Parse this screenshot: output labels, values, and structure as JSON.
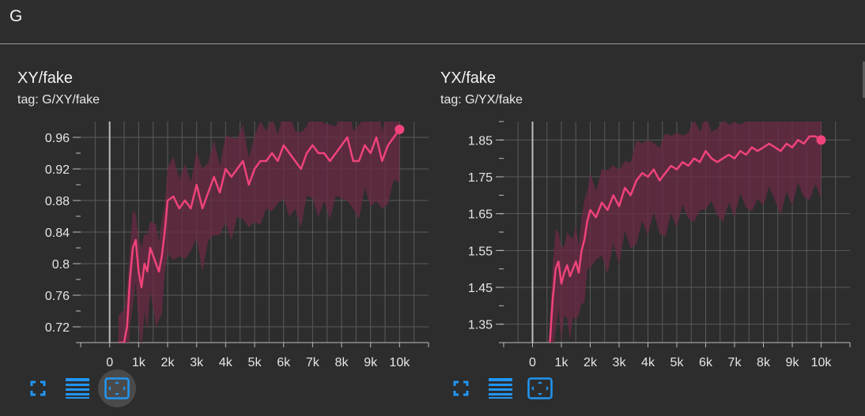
{
  "group": {
    "title": "G"
  },
  "colors": {
    "line": "#f0437a",
    "band": "#6b2a45",
    "grid": "#5a5a5a",
    "zero_axis": "#bdbdbd"
  },
  "toolbar_icons": [
    "fullscreen-icon",
    "data-table-icon",
    "fit-domain-icon"
  ],
  "chart_data": [
    {
      "type": "line",
      "title": "XY/fake",
      "tag": "tag: G/XY/fake",
      "xlim": [
        -1000,
        11000
      ],
      "ylim": [
        0.7,
        0.98
      ],
      "xticks": [
        0,
        1000,
        2000,
        3000,
        4000,
        5000,
        6000,
        7000,
        8000,
        9000,
        10000
      ],
      "xtick_labels": [
        "0",
        "1k",
        "2k",
        "3k",
        "4k",
        "5k",
        "6k",
        "7k",
        "8k",
        "9k",
        "10k"
      ],
      "yticks": [
        0.72,
        0.76,
        0.8,
        0.84,
        0.88,
        0.92,
        0.96
      ],
      "ytick_labels": [
        "0.72",
        "0.76",
        "0.8",
        "0.84",
        "0.88",
        "0.92",
        "0.96"
      ],
      "grid": true,
      "series": [
        {
          "x": [
            300,
            500,
            600,
            700,
            800,
            900,
            1000,
            1100,
            1200,
            1300,
            1400,
            1500,
            1600,
            1700,
            1800,
            1900,
            2000,
            2200,
            2400,
            2600,
            2800,
            3000,
            3200,
            3400,
            3600,
            3800,
            4000,
            4200,
            4400,
            4600,
            4800,
            5000,
            5200,
            5400,
            5600,
            5800,
            6000,
            6200,
            6400,
            6600,
            6800,
            7000,
            7200,
            7400,
            7600,
            7800,
            8000,
            8200,
            8400,
            8600,
            8800,
            9000,
            9200,
            9400,
            9600,
            9800,
            10000
          ],
          "values": [
            0.7,
            0.7,
            0.72,
            0.78,
            0.82,
            0.83,
            0.79,
            0.77,
            0.8,
            0.79,
            0.82,
            0.81,
            0.8,
            0.79,
            0.81,
            0.84,
            0.88,
            0.885,
            0.87,
            0.88,
            0.87,
            0.9,
            0.87,
            0.89,
            0.91,
            0.89,
            0.92,
            0.91,
            0.92,
            0.93,
            0.9,
            0.92,
            0.93,
            0.93,
            0.94,
            0.93,
            0.95,
            0.94,
            0.93,
            0.92,
            0.94,
            0.95,
            0.94,
            0.94,
            0.93,
            0.94,
            0.95,
            0.96,
            0.93,
            0.93,
            0.95,
            0.94,
            0.96,
            0.93,
            0.95,
            0.96,
            0.97
          ]
        }
      ]
    },
    {
      "type": "line",
      "title": "YX/fake",
      "tag": "tag: G/YX/fake",
      "xlim": [
        -1000,
        11000
      ],
      "ylim": [
        1.3,
        1.9
      ],
      "xticks": [
        0,
        1000,
        2000,
        3000,
        4000,
        5000,
        6000,
        7000,
        8000,
        9000,
        10000
      ],
      "xtick_labels": [
        "0",
        "1k",
        "2k",
        "3k",
        "4k",
        "5k",
        "6k",
        "7k",
        "8k",
        "9k",
        "10k"
      ],
      "yticks": [
        1.35,
        1.45,
        1.55,
        1.65,
        1.75,
        1.85
      ],
      "ytick_labels": [
        "1.35",
        "1.45",
        "1.55",
        "1.65",
        "1.75",
        "1.85"
      ],
      "grid": true,
      "series": [
        {
          "x": [
            600,
            700,
            800,
            900,
            1000,
            1100,
            1200,
            1300,
            1400,
            1500,
            1600,
            1700,
            1800,
            1900,
            2000,
            2200,
            2400,
            2600,
            2800,
            3000,
            3200,
            3400,
            3600,
            3800,
            4000,
            4200,
            4400,
            4600,
            4800,
            5000,
            5200,
            5400,
            5600,
            5800,
            6000,
            6200,
            6400,
            6600,
            6800,
            7000,
            7200,
            7400,
            7600,
            7800,
            8000,
            8200,
            8400,
            8600,
            8800,
            9000,
            9200,
            9400,
            9600,
            9800,
            10000
          ],
          "values": [
            1.3,
            1.42,
            1.5,
            1.52,
            1.46,
            1.49,
            1.51,
            1.48,
            1.5,
            1.52,
            1.49,
            1.55,
            1.58,
            1.63,
            1.66,
            1.64,
            1.68,
            1.66,
            1.7,
            1.67,
            1.72,
            1.7,
            1.74,
            1.76,
            1.75,
            1.77,
            1.74,
            1.76,
            1.78,
            1.77,
            1.79,
            1.78,
            1.8,
            1.79,
            1.82,
            1.8,
            1.79,
            1.8,
            1.81,
            1.8,
            1.82,
            1.81,
            1.83,
            1.82,
            1.83,
            1.84,
            1.83,
            1.82,
            1.84,
            1.83,
            1.85,
            1.84,
            1.86,
            1.86,
            1.85
          ]
        }
      ]
    }
  ]
}
